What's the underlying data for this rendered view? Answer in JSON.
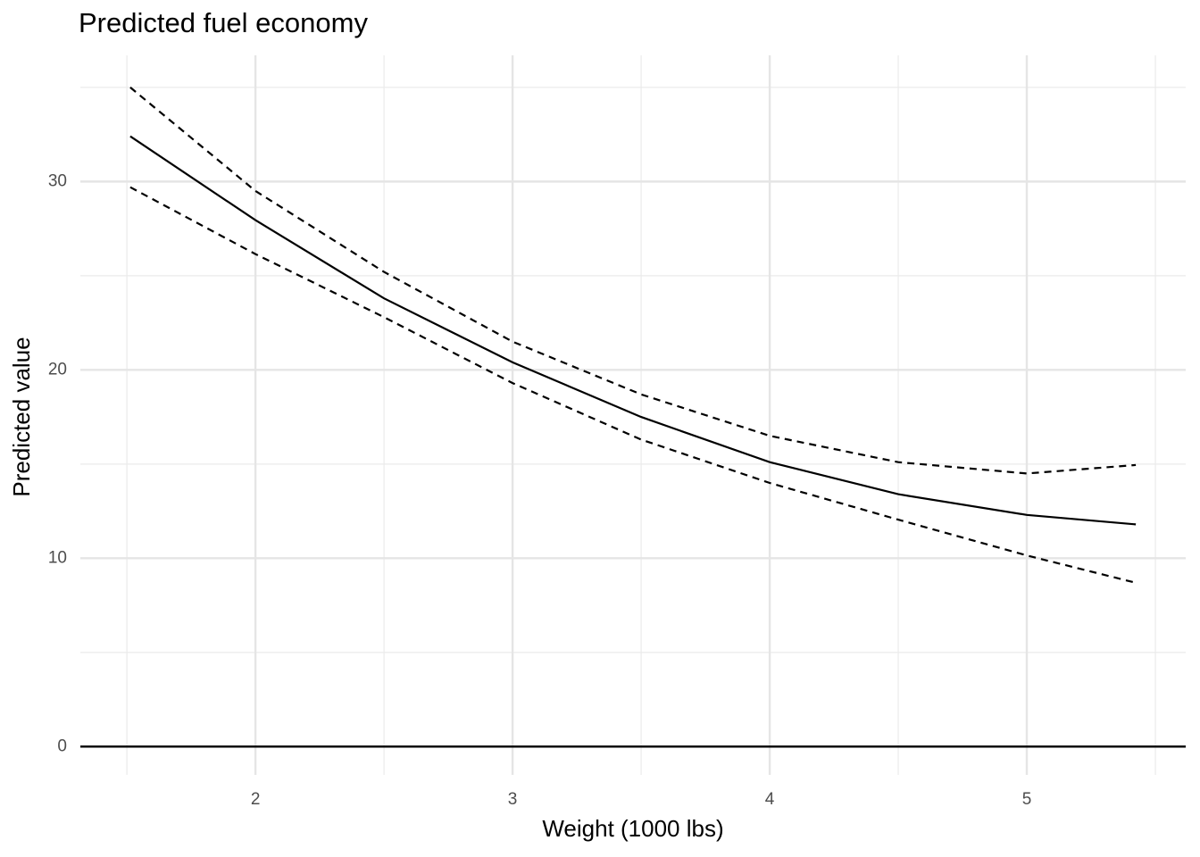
{
  "chart_data": {
    "type": "line",
    "title": "Predicted fuel economy",
    "x_label": "Weight (1000 lbs)",
    "y_label": "Predicted value",
    "x": [
      1.513,
      2,
      2.5,
      3,
      3.5,
      4,
      4.5,
      5,
      5.424
    ],
    "series": [
      {
        "color": "#000000",
        "dash": "solid",
        "values": [
          32.4,
          27.95,
          23.8,
          20.4,
          17.5,
          15.1,
          13.4,
          12.3,
          11.8
        ]
      },
      {
        "color": "#000000",
        "dash": "dashed",
        "values": [
          35.0,
          29.5,
          25.2,
          21.5,
          18.7,
          16.5,
          15.1,
          14.5,
          14.95
        ]
      },
      {
        "color": "#000000",
        "dash": "dashed",
        "values": [
          29.7,
          26.15,
          22.8,
          19.3,
          16.3,
          14.0,
          12.05,
          10.15,
          8.7
        ]
      }
    ],
    "xlim": [
      1.319,
      5.618
    ],
    "ylim": [
      -1.5,
      36.7
    ],
    "xticks": [
      2,
      3,
      4,
      5
    ],
    "yticks": [
      0,
      10,
      20,
      30
    ],
    "minor_xticks": [
      1.5,
      2.5,
      3.5,
      4.5,
      5.5
    ],
    "minor_yticks": [
      5,
      15,
      25,
      35
    ],
    "hline": 0,
    "grid": true
  }
}
